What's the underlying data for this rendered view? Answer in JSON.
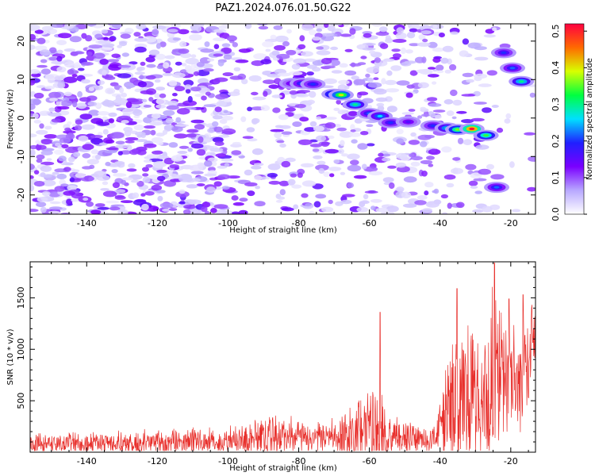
{
  "figure": {
    "title": "PAZ1.2024.076.01.50.G22"
  },
  "chart_data": [
    {
      "type": "heatmap",
      "name": "spectrogram",
      "title": "",
      "xlabel": "Height of straight line (km)",
      "ylabel": "Frequency (Hz)",
      "xlim": [
        -156,
        -13
      ],
      "ylim": [
        -25,
        24.5
      ],
      "xticks": [
        "-140",
        "-120",
        "-100",
        "-80",
        "-60",
        "-40",
        "-20"
      ],
      "xtick_values": [
        -140,
        -120,
        -100,
        -80,
        -60,
        -40,
        -20
      ],
      "yticks": [
        "-20",
        "-10",
        "0",
        "10",
        "20"
      ],
      "ytick_values": [
        -20,
        -10,
        0,
        10,
        20
      ],
      "colorbar": {
        "label": "Normalized spectral amplitude",
        "range": [
          0.0,
          0.52
        ],
        "ticks": [
          "0.0",
          "0.1",
          "0.2",
          "0.3",
          "0.4",
          "0.5"
        ],
        "tick_values": [
          0.0,
          0.1,
          0.2,
          0.3,
          0.4,
          0.5
        ],
        "colormap": [
          "#ffffff",
          "#b8a8ff",
          "#7a00ff",
          "#2020ff",
          "#00e0ff",
          "#00ff40",
          "#d8ff00",
          "#ff6a00",
          "#ff0040"
        ]
      },
      "ridge": [
        {
          "x": -82,
          "y": 9.0,
          "v": 0.16
        },
        {
          "x": -79,
          "y": 9.0,
          "v": 0.22
        },
        {
          "x": -76,
          "y": 8.8,
          "v": 0.2
        },
        {
          "x": -70,
          "y": 6.2,
          "v": 0.34
        },
        {
          "x": -68,
          "y": 6.0,
          "v": 0.4
        },
        {
          "x": -64,
          "y": 3.5,
          "v": 0.3
        },
        {
          "x": -60,
          "y": 1.2,
          "v": 0.22
        },
        {
          "x": -57,
          "y": 0.5,
          "v": 0.26
        },
        {
          "x": -54,
          "y": -1.2,
          "v": 0.2
        },
        {
          "x": -49,
          "y": -1.0,
          "v": 0.16
        },
        {
          "x": -42,
          "y": -2.0,
          "v": 0.2
        },
        {
          "x": -38,
          "y": -2.6,
          "v": 0.28
        },
        {
          "x": -35,
          "y": -3.0,
          "v": 0.36
        },
        {
          "x": -31,
          "y": -2.8,
          "v": 0.52
        },
        {
          "x": -27,
          "y": -4.5,
          "v": 0.34
        },
        {
          "x": -24,
          "y": -18.0,
          "v": 0.22
        },
        {
          "x": -22,
          "y": 17.0,
          "v": 0.2
        },
        {
          "x": -19.5,
          "y": 13.0,
          "v": 0.22
        },
        {
          "x": -17,
          "y": 9.5,
          "v": 0.3
        }
      ]
    },
    {
      "type": "line",
      "name": "snr",
      "title": "",
      "xlabel": "Height of straight line (km)",
      "ylabel": "SNR (10 * v/v)",
      "xlim": [
        -156,
        -13
      ],
      "ylim": [
        0,
        1850
      ],
      "xticks": [
        "-140",
        "-120",
        "-100",
        "-80",
        "-60",
        "-40",
        "-20"
      ],
      "xtick_values": [
        -140,
        -120,
        -100,
        -80,
        -60,
        -40,
        -20
      ],
      "yticks": [
        "500",
        "1000",
        "1500"
      ],
      "ytick_values": [
        500,
        1000,
        1500
      ],
      "color": "#e8302c",
      "envelope": [
        {
          "x": -156,
          "base": 80,
          "amp": 120
        },
        {
          "x": -130,
          "base": 90,
          "amp": 130
        },
        {
          "x": -110,
          "base": 100,
          "amp": 150
        },
        {
          "x": -100,
          "base": 110,
          "amp": 160
        },
        {
          "x": -92,
          "base": 150,
          "amp": 240
        },
        {
          "x": -85,
          "base": 170,
          "amp": 250
        },
        {
          "x": -78,
          "base": 130,
          "amp": 170
        },
        {
          "x": -70,
          "base": 140,
          "amp": 200
        },
        {
          "x": -64,
          "base": 200,
          "amp": 350
        },
        {
          "x": -60,
          "base": 230,
          "amp": 420
        },
        {
          "x": -57,
          "base": 250,
          "amp": 550
        },
        {
          "x": -54,
          "base": 160,
          "amp": 260
        },
        {
          "x": -45,
          "base": 130,
          "amp": 160
        },
        {
          "x": -41,
          "base": 140,
          "amp": 190
        },
        {
          "x": -39,
          "base": 350,
          "amp": 550
        },
        {
          "x": -35,
          "base": 500,
          "amp": 750
        },
        {
          "x": -31,
          "base": 550,
          "amp": 900
        },
        {
          "x": -28,
          "base": 420,
          "amp": 700
        },
        {
          "x": -25,
          "base": 650,
          "amp": 1100
        },
        {
          "x": -22,
          "base": 700,
          "amp": 850
        },
        {
          "x": -18,
          "base": 700,
          "amp": 750
        },
        {
          "x": -13,
          "base": 1100,
          "amp": 500
        }
      ],
      "peaks": [
        {
          "x": -57.0,
          "y": 1360
        },
        {
          "x": -35.2,
          "y": 1590
        },
        {
          "x": -24.6,
          "y": 1840
        },
        {
          "x": -20.5,
          "y": 1490
        },
        {
          "x": -16.5,
          "y": 1530
        }
      ]
    }
  ]
}
